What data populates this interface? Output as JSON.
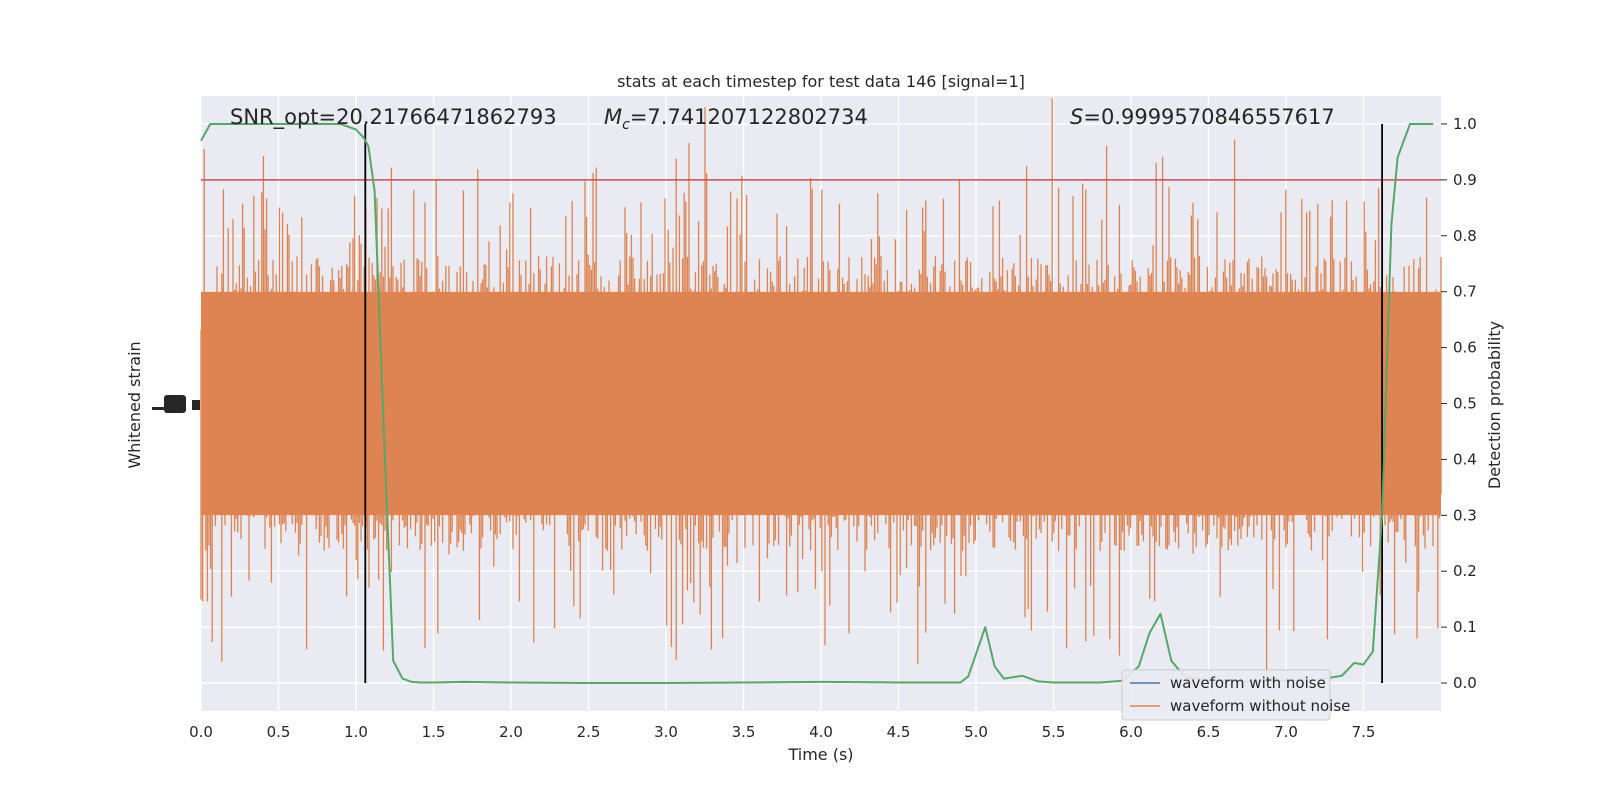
{
  "chart_data": {
    "type": "line",
    "title": "stats at each timestep for test data 146 [signal=1]",
    "xlabel": "Time (s)",
    "ylabel_left": "Whitened strain",
    "ylabel_right": "Detection probability",
    "xlim": [
      0.0,
      8.0
    ],
    "ylim_right": [
      -0.05,
      1.05
    ],
    "x_ticks": [
      "0.0",
      "0.5",
      "1.0",
      "1.5",
      "2.0",
      "2.5",
      "3.0",
      "3.5",
      "4.0",
      "4.5",
      "5.0",
      "5.5",
      "6.0",
      "6.5",
      "7.0",
      "7.5"
    ],
    "right_ticks": [
      "0.0",
      "0.1",
      "0.2",
      "0.3",
      "0.4",
      "0.5",
      "0.6",
      "0.7",
      "0.8",
      "0.9",
      "1.0"
    ],
    "grid": true,
    "annotations": {
      "snr": "SNR_opt=20.21766471862793",
      "mc_symbol": "M",
      "mc_subscript": "c",
      "mc_value": "=7.741207122802734",
      "s_symbol": "S",
      "s_value": "=0.9999570846557617"
    },
    "threshold": 0.9,
    "vlines": [
      1.06,
      7.62
    ],
    "legend": {
      "position": "lower-right",
      "entries": [
        "waveform with noise",
        "waveform without noise"
      ]
    },
    "series": [
      {
        "name": "waveform with noise",
        "color": "#4c72b0",
        "values": []
      },
      {
        "name": "waveform without noise",
        "color": "#dd8452",
        "envelope": [
          -0.8,
          0.8
        ]
      },
      {
        "name": "detection probability",
        "color": "#55a868",
        "x": [
          0.0,
          0.06,
          0.2,
          0.5,
          0.9,
          1.0,
          1.05,
          1.08,
          1.12,
          1.18,
          1.24,
          1.3,
          1.36,
          1.42,
          1.5,
          1.7,
          2.0,
          2.5,
          3.0,
          3.5,
          4.0,
          4.5,
          4.9,
          4.95,
          5.06,
          5.12,
          5.18,
          5.3,
          5.4,
          5.5,
          5.8,
          5.95,
          6.05,
          6.12,
          6.19,
          6.26,
          6.35,
          6.5,
          6.7,
          7.0,
          7.2,
          7.36,
          7.44,
          7.5,
          7.56,
          7.62,
          7.68,
          7.72,
          7.8,
          7.95
        ],
        "y": [
          0.97,
          1.0,
          1.0,
          1.0,
          1.0,
          0.99,
          0.975,
          0.96,
          0.88,
          0.45,
          0.04,
          0.008,
          0.002,
          0.001,
          0.001,
          0.002,
          0.001,
          0.0,
          0.0,
          0.001,
          0.002,
          0.001,
          0.001,
          0.012,
          0.1,
          0.03,
          0.008,
          0.013,
          0.003,
          0.001,
          0.001,
          0.004,
          0.03,
          0.09,
          0.124,
          0.04,
          0.01,
          0.005,
          0.003,
          0.004,
          0.006,
          0.013,
          0.036,
          0.033,
          0.056,
          0.3,
          0.82,
          0.94,
          1.0,
          1.0
        ]
      }
    ]
  }
}
